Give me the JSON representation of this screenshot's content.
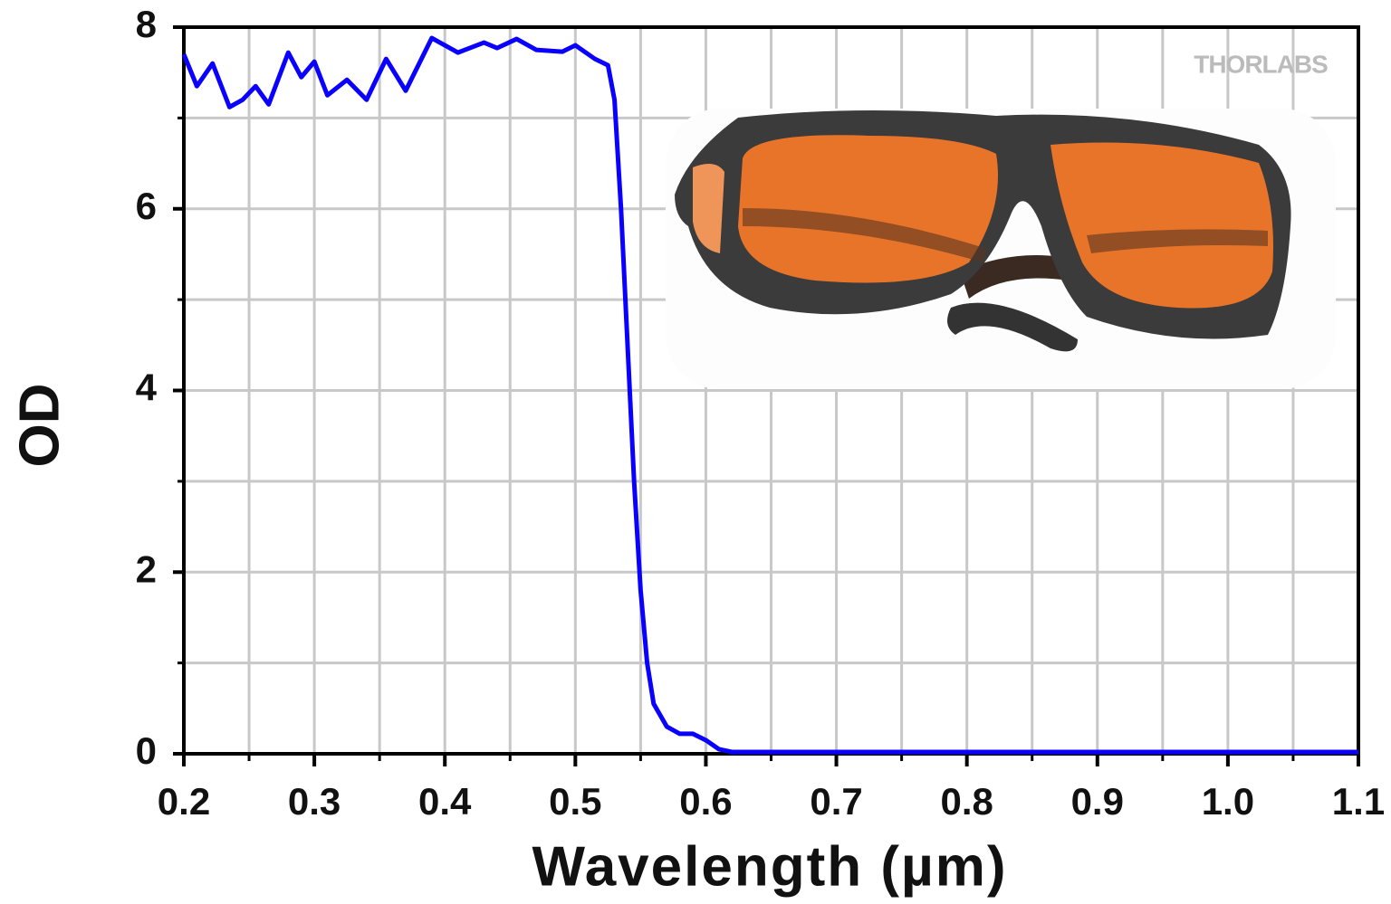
{
  "chart_data": {
    "type": "line",
    "xlabel": "Wavelength (µm)",
    "ylabel": "OD",
    "logo": "THORLABS",
    "x": [
      0.2,
      0.21,
      0.222,
      0.235,
      0.245,
      0.255,
      0.265,
      0.28,
      0.29,
      0.3,
      0.31,
      0.325,
      0.34,
      0.355,
      0.37,
      0.39,
      0.41,
      0.43,
      0.44,
      0.455,
      0.47,
      0.49,
      0.5,
      0.515,
      0.525,
      0.53,
      0.535,
      0.54,
      0.545,
      0.55,
      0.555,
      0.56,
      0.57,
      0.58,
      0.59,
      0.6,
      0.61,
      0.62,
      0.7,
      0.9,
      1.1
    ],
    "series": [
      {
        "color": "#0a00ff",
        "values": [
          7.7,
          7.35,
          7.6,
          7.12,
          7.2,
          7.35,
          7.15,
          7.72,
          7.45,
          7.62,
          7.25,
          7.42,
          7.2,
          7.65,
          7.3,
          7.88,
          7.72,
          7.83,
          7.77,
          7.87,
          7.75,
          7.73,
          7.8,
          7.65,
          7.58,
          7.2,
          6.0,
          4.5,
          3.0,
          1.8,
          1.0,
          0.55,
          0.3,
          0.22,
          0.22,
          0.15,
          0.05,
          0.02,
          0.02,
          0.02,
          0.02
        ]
      }
    ],
    "xlim": [
      0.2,
      1.1
    ],
    "ylim": [
      0,
      8
    ],
    "xticks": [
      0.2,
      0.3,
      0.4,
      0.5,
      0.6,
      0.7,
      0.8,
      0.9,
      {
        "value": 1,
        "label": "1.0"
      },
      1.1
    ],
    "yticks": [
      0,
      2,
      4,
      6,
      8
    ],
    "xminorticks": [
      0.25,
      0.35,
      0.45,
      0.55,
      0.65,
      0.75,
      0.85,
      0.95,
      1.05
    ],
    "yminorticks": [
      1,
      3,
      5,
      7
    ],
    "grid": true
  }
}
